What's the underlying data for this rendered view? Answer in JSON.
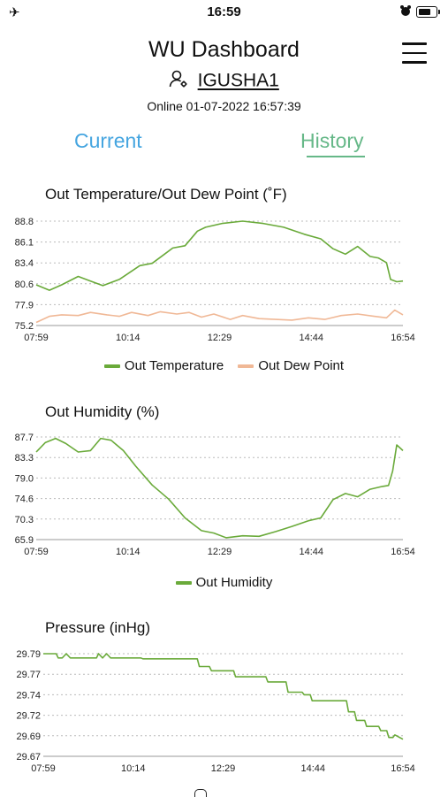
{
  "status_bar": {
    "time": "16:59",
    "icons": [
      "airplane-icon",
      "alarm-icon",
      "battery-icon"
    ]
  },
  "header": {
    "title": "WU Dashboard",
    "station_id": "IGUSHA1",
    "status": "Online 01-07-2022 16:57:39"
  },
  "tabs": {
    "current": "Current",
    "history": "History",
    "active": "History"
  },
  "colors": {
    "temperature": "#6aaa3a",
    "dew_point": "#f0b896",
    "humidity": "#6aaa3a",
    "pressure": "#6aaa3a",
    "tab_current": "#45a5e0",
    "tab_history": "#66b888"
  },
  "charts": {
    "temperature": {
      "title": "Out Temperature/Out Dew Point (˚F)",
      "legend": [
        "Out Temperature",
        "Out Dew Point"
      ]
    },
    "humidity": {
      "title": "Out Humidity (%)",
      "legend": [
        "Out Humidity"
      ]
    },
    "pressure": {
      "title": "Pressure (inHg)"
    }
  },
  "chart_data": [
    {
      "type": "line",
      "title": "Out Temperature/Out Dew Point (˚F)",
      "x_ticks": [
        "07:59",
        "10:14",
        "12:29",
        "14:44",
        "16:54"
      ],
      "y_ticks": [
        "88.8",
        "86.1",
        "83.4",
        "80.6",
        "77.9",
        "75.2"
      ],
      "ylim": [
        75.2,
        88.8
      ],
      "grid": true,
      "legend_position": "bottom",
      "series": [
        {
          "name": "Out Temperature",
          "color": "#6aaa3a",
          "x": [
            7.98,
            8.3,
            8.6,
            9.0,
            9.3,
            9.6,
            10.0,
            10.5,
            10.8,
            11.1,
            11.3,
            11.6,
            11.9,
            12.1,
            12.5,
            13.0,
            13.5,
            14.0,
            14.5,
            14.9,
            15.2,
            15.5,
            15.8,
            16.1,
            16.3,
            16.5,
            16.6,
            16.75,
            16.9
          ],
          "y": [
            80.5,
            79.8,
            80.5,
            81.6,
            81.0,
            80.4,
            81.2,
            83.0,
            83.3,
            84.5,
            85.3,
            85.6,
            87.5,
            88.0,
            88.5,
            88.8,
            88.5,
            88.0,
            87.1,
            86.5,
            85.2,
            84.5,
            85.5,
            84.2,
            84.0,
            83.4,
            81.2,
            80.9,
            81.0
          ]
        },
        {
          "name": "Out Dew Point",
          "color": "#f0b896",
          "x": [
            7.98,
            8.3,
            8.6,
            9.0,
            9.3,
            9.7,
            10.0,
            10.3,
            10.7,
            11.0,
            11.4,
            11.7,
            12.0,
            12.3,
            12.7,
            13.0,
            13.4,
            13.8,
            14.2,
            14.6,
            15.0,
            15.4,
            15.8,
            16.2,
            16.5,
            16.7,
            16.9
          ],
          "y": [
            75.6,
            76.4,
            76.6,
            76.5,
            76.9,
            76.6,
            76.4,
            76.9,
            76.5,
            77.0,
            76.7,
            76.9,
            76.3,
            76.7,
            76.0,
            76.5,
            76.1,
            76.0,
            75.9,
            76.2,
            76.0,
            76.5,
            76.7,
            76.4,
            76.2,
            77.2,
            76.6
          ]
        }
      ]
    },
    {
      "type": "line",
      "title": "Out Humidity (%)",
      "x_ticks": [
        "07:59",
        "10:14",
        "12:29",
        "14:44",
        "16:54"
      ],
      "y_ticks": [
        "87.7",
        "83.3",
        "79.0",
        "74.6",
        "70.3",
        "65.9"
      ],
      "ylim": [
        65.9,
        87.7
      ],
      "grid": true,
      "legend_position": "bottom",
      "series": [
        {
          "name": "Out Humidity",
          "color": "#6aaa3a",
          "x": [
            7.98,
            8.2,
            8.45,
            8.7,
            9.0,
            9.3,
            9.55,
            9.8,
            10.1,
            10.4,
            10.8,
            11.2,
            11.6,
            12.0,
            12.3,
            12.6,
            13.0,
            13.4,
            13.8,
            14.2,
            14.6,
            14.9,
            15.2,
            15.5,
            15.8,
            16.1,
            16.4,
            16.55,
            16.65,
            16.75,
            16.9
          ],
          "y": [
            84.5,
            86.5,
            87.4,
            86.3,
            84.5,
            84.8,
            87.4,
            87.0,
            84.8,
            81.5,
            77.5,
            74.5,
            70.5,
            67.8,
            67.3,
            66.3,
            66.7,
            66.6,
            67.6,
            68.7,
            69.9,
            70.5,
            74.4,
            75.7,
            75.0,
            76.6,
            77.2,
            77.4,
            80.5,
            86.0,
            84.8
          ]
        }
      ]
    },
    {
      "type": "line",
      "title": "Pressure (inHg)",
      "x_ticks": [
        "07:59",
        "10:14",
        "12:29",
        "14:44",
        "16:54"
      ],
      "y_ticks": [
        "29.79",
        "29.77",
        "29.74",
        "29.72",
        "29.69",
        "29.67"
      ],
      "ylim": [
        29.67,
        29.79
      ],
      "grid": true,
      "series": [
        {
          "name": "Pressure",
          "color": "#6aaa3a",
          "x": [
            7.98,
            8.3,
            8.35,
            8.45,
            8.55,
            8.65,
            9.3,
            9.35,
            9.45,
            9.55,
            9.65,
            10.4,
            10.45,
            11.8,
            11.85,
            12.1,
            12.15,
            12.7,
            12.75,
            13.5,
            13.55,
            14.0,
            14.05,
            14.4,
            14.45,
            14.6,
            14.65,
            15.5,
            15.55,
            15.7,
            15.75,
            15.95,
            16.0,
            16.3,
            16.35,
            16.5,
            16.55,
            16.65,
            16.7,
            16.9
          ],
          "y": [
            29.79,
            29.79,
            29.785,
            29.785,
            29.79,
            29.785,
            29.785,
            29.79,
            29.785,
            29.79,
            29.785,
            29.785,
            29.784,
            29.784,
            29.775,
            29.775,
            29.77,
            29.77,
            29.763,
            29.763,
            29.757,
            29.757,
            29.745,
            29.745,
            29.742,
            29.742,
            29.735,
            29.735,
            29.722,
            29.722,
            29.712,
            29.712,
            29.705,
            29.705,
            29.7,
            29.7,
            29.692,
            29.692,
            29.695,
            29.69
          ]
        }
      ]
    }
  ]
}
